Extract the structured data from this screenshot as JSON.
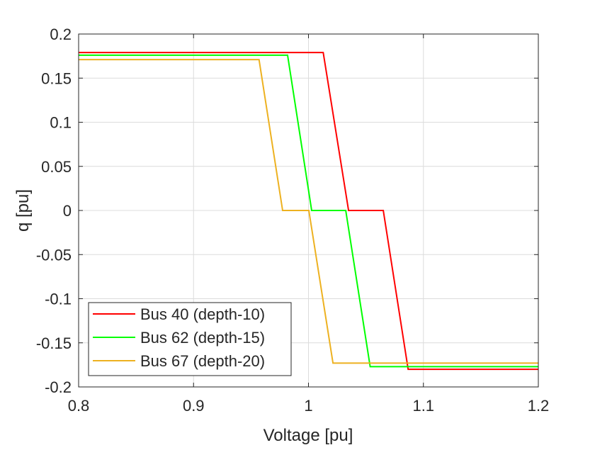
{
  "chart_data": {
    "type": "line",
    "title": "",
    "xlabel": "Voltage [pu]",
    "ylabel": "q [pu]",
    "xlim": [
      0.8,
      1.2
    ],
    "ylim": [
      -0.2,
      0.2
    ],
    "grid": true,
    "legend_position": "bottom-left",
    "xticks": [
      0.8,
      0.9,
      1.0,
      1.1,
      1.2
    ],
    "xtick_labels": [
      "0.8",
      "0.9",
      "1",
      "1.1",
      "1.2"
    ],
    "yticks": [
      0.2,
      0.15,
      0.1,
      0.05,
      0,
      -0.05,
      -0.1,
      -0.15,
      -0.2
    ],
    "ytick_labels": [
      "0.2",
      "0.15",
      "0.1",
      "0.05",
      "0",
      "-0.05",
      "-0.1",
      "-0.15",
      "-0.2"
    ],
    "series": [
      {
        "name": "Bus 40 (depth-10)",
        "color": "#ff0000",
        "x": [
          0.8,
          1.0128,
          1.0349,
          1.0651,
          1.0867,
          1.2
        ],
        "y": [
          0.179,
          0.179,
          0,
          0,
          -0.18,
          -0.18
        ]
      },
      {
        "name": "Bus 62 (depth-15)",
        "color": "#00ff00",
        "x": [
          0.8,
          0.9818,
          1.0028,
          1.0324,
          1.0537,
          1.2
        ],
        "y": [
          0.176,
          0.176,
          0,
          0,
          -0.177,
          -0.177
        ]
      },
      {
        "name": "Bus 67 (depth-20)",
        "color": "#edb120",
        "x": [
          0.8,
          0.957,
          0.9775,
          1.0003,
          1.0213,
          1.2
        ],
        "y": [
          0.171,
          0.171,
          0,
          0,
          -0.173,
          -0.173
        ]
      }
    ]
  }
}
